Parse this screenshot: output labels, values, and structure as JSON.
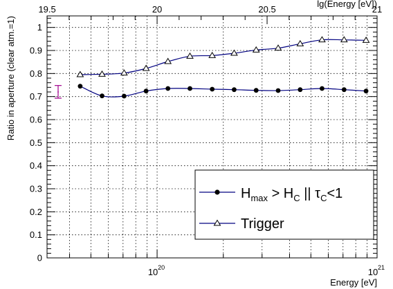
{
  "chart_data": {
    "type": "line",
    "xlabel": "Energy [eV]",
    "x2label": "lg(Energy [eV])",
    "ylabel": "Ratio in aperture (clear atm.=1)",
    "xscale": "log",
    "xlim": [
      3.16e+19,
      1e+21
    ],
    "ylim": [
      0,
      1.05
    ],
    "y_ticks": [
      "0",
      "0.1",
      "0.2",
      "0.3",
      "0.4",
      "0.5",
      "0.6",
      "0.7",
      "0.8",
      "0.9",
      "1"
    ],
    "x_tick_labels": [
      {
        "value": 1e+20,
        "label": "10",
        "exp": "20"
      },
      {
        "value": 1e+21,
        "label": "10",
        "exp": "21"
      }
    ],
    "x2_tick_labels": [
      {
        "value": 19.5,
        "label": "19.5"
      },
      {
        "value": 20,
        "label": "20"
      },
      {
        "value": 20.5,
        "label": "20.5"
      },
      {
        "value": 21,
        "label": "21"
      }
    ],
    "grid": true,
    "legend_position": "bottom-right",
    "series": [
      {
        "name": "H_max > H_C || τ_C<1",
        "marker": "circle",
        "color": "#000080",
        "x": [
          4.47e+19,
          5.62e+19,
          7.08e+19,
          8.91e+19,
          1.12e+20,
          1.41e+20,
          1.78e+20,
          2.24e+20,
          2.82e+20,
          3.55e+20,
          4.47e+20,
          5.62e+20,
          7.08e+20,
          8.91e+20
        ],
        "y": [
          0.745,
          0.703,
          0.702,
          0.724,
          0.735,
          0.735,
          0.732,
          0.73,
          0.727,
          0.726,
          0.73,
          0.735,
          0.73,
          0.724
        ]
      },
      {
        "name": "Trigger",
        "marker": "triangle",
        "color": "#000080",
        "x": [
          4.47e+19,
          5.62e+19,
          7.08e+19,
          8.91e+19,
          1.12e+20,
          1.41e+20,
          1.78e+20,
          2.24e+20,
          2.82e+20,
          3.55e+20,
          4.47e+20,
          5.62e+20,
          7.08e+20,
          8.91e+20
        ],
        "y": [
          0.795,
          0.797,
          0.802,
          0.822,
          0.852,
          0.875,
          0.878,
          0.888,
          0.902,
          0.91,
          0.929,
          0.946,
          0.946,
          0.944
        ]
      }
    ],
    "error_bar": {
      "color": "#a0008c",
      "center": 0.72,
      "low": 0.693,
      "high": 0.748
    }
  },
  "legend": {
    "h_main": "H",
    "h_sub": "max",
    "gt": " > H",
    "c_sub": "C",
    "or": " || τ",
    "c_sub2": "C",
    "lt": "<1",
    "trigger": "Trigger"
  }
}
